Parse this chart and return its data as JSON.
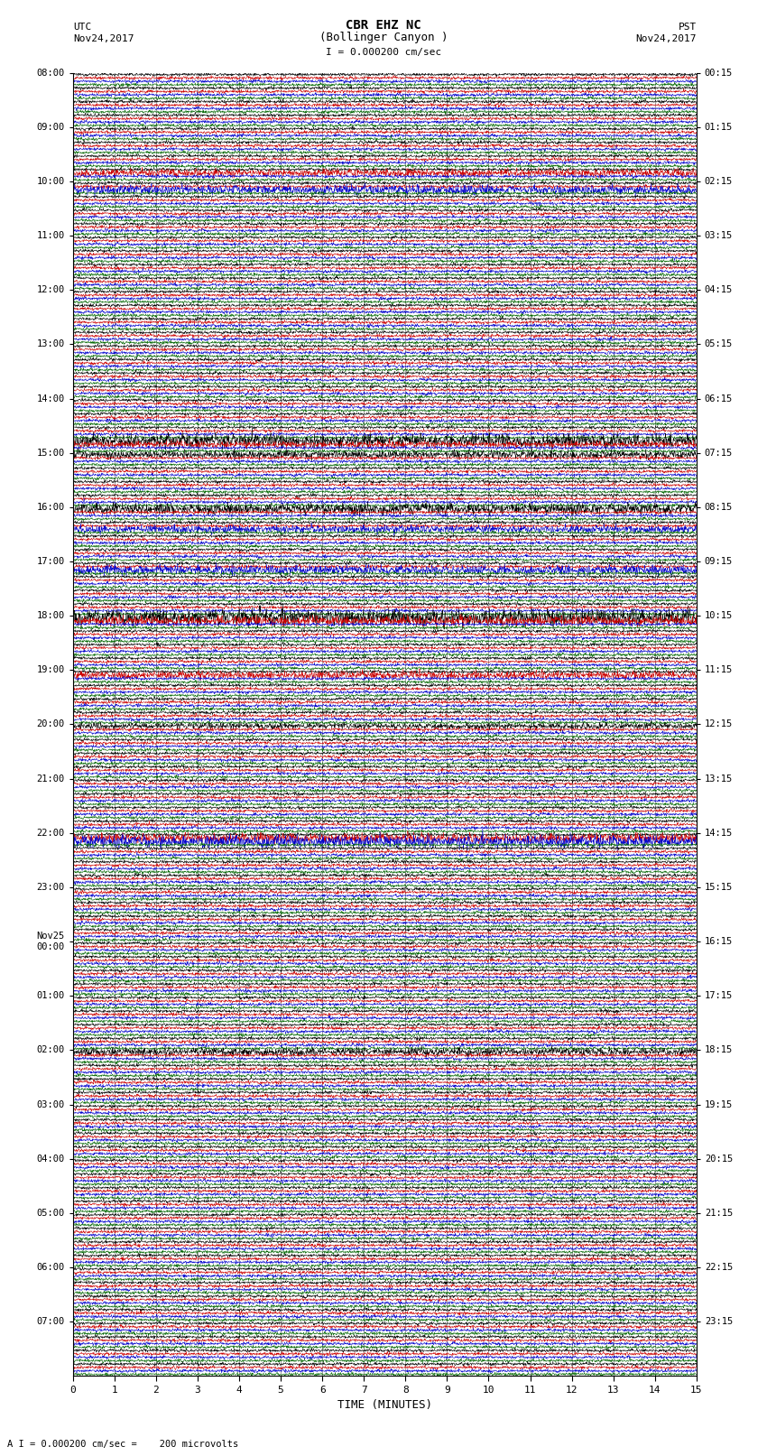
{
  "title_line1": "CBR EHZ NC",
  "title_line2": "(Bollinger Canyon )",
  "title_line3": "I = 0.000200 cm/sec",
  "left_header_line1": "UTC",
  "left_header_line2": "Nov24,2017",
  "right_header_line1": "PST",
  "right_header_line2": "Nov24,2017",
  "xlabel": "TIME (MINUTES)",
  "footnote": "A I = 0.000200 cm/sec =    200 microvolts",
  "utc_labels": [
    "08:00",
    "",
    "",
    "",
    "09:00",
    "",
    "",
    "",
    "10:00",
    "",
    "",
    "",
    "11:00",
    "",
    "",
    "",
    "12:00",
    "",
    "",
    "",
    "13:00",
    "",
    "",
    "",
    "14:00",
    "",
    "",
    "",
    "15:00",
    "",
    "",
    "",
    "16:00",
    "",
    "",
    "",
    "17:00",
    "",
    "",
    "",
    "18:00",
    "",
    "",
    "",
    "19:00",
    "",
    "",
    "",
    "20:00",
    "",
    "",
    "",
    "21:00",
    "",
    "",
    "",
    "22:00",
    "",
    "",
    "",
    "23:00",
    "",
    "",
    "",
    "Nov25\n00:00",
    "",
    "",
    "",
    "01:00",
    "",
    "",
    "",
    "02:00",
    "",
    "",
    "",
    "03:00",
    "",
    "",
    "",
    "04:00",
    "",
    "",
    "",
    "05:00",
    "",
    "",
    "",
    "06:00",
    "",
    "",
    "",
    "07:00",
    "",
    "",
    ""
  ],
  "pst_labels": [
    "00:15",
    "",
    "",
    "",
    "01:15",
    "",
    "",
    "",
    "02:15",
    "",
    "",
    "",
    "03:15",
    "",
    "",
    "",
    "04:15",
    "",
    "",
    "",
    "05:15",
    "",
    "",
    "",
    "06:15",
    "",
    "",
    "",
    "07:15",
    "",
    "",
    "",
    "08:15",
    "",
    "",
    "",
    "09:15",
    "",
    "",
    "",
    "10:15",
    "",
    "",
    "",
    "11:15",
    "",
    "",
    "",
    "12:15",
    "",
    "",
    "",
    "13:15",
    "",
    "",
    "",
    "14:15",
    "",
    "",
    "",
    "15:15",
    "",
    "",
    "",
    "16:15",
    "",
    "",
    "",
    "17:15",
    "",
    "",
    "",
    "18:15",
    "",
    "",
    "",
    "19:15",
    "",
    "",
    "",
    "20:15",
    "",
    "",
    "",
    "21:15",
    "",
    "",
    "",
    "22:15",
    "",
    "",
    "",
    "23:15",
    "",
    "",
    ""
  ],
  "n_rows": 96,
  "traces_per_row": 4,
  "trace_colors": [
    "#000000",
    "#cc0000",
    "#0000cc",
    "#006600"
  ],
  "background_color": "#ffffff",
  "grid_color": "#777777",
  "xmin": 0,
  "xmax": 15,
  "xticks": [
    0,
    1,
    2,
    3,
    4,
    5,
    6,
    7,
    8,
    9,
    10,
    11,
    12,
    13,
    14,
    15
  ]
}
